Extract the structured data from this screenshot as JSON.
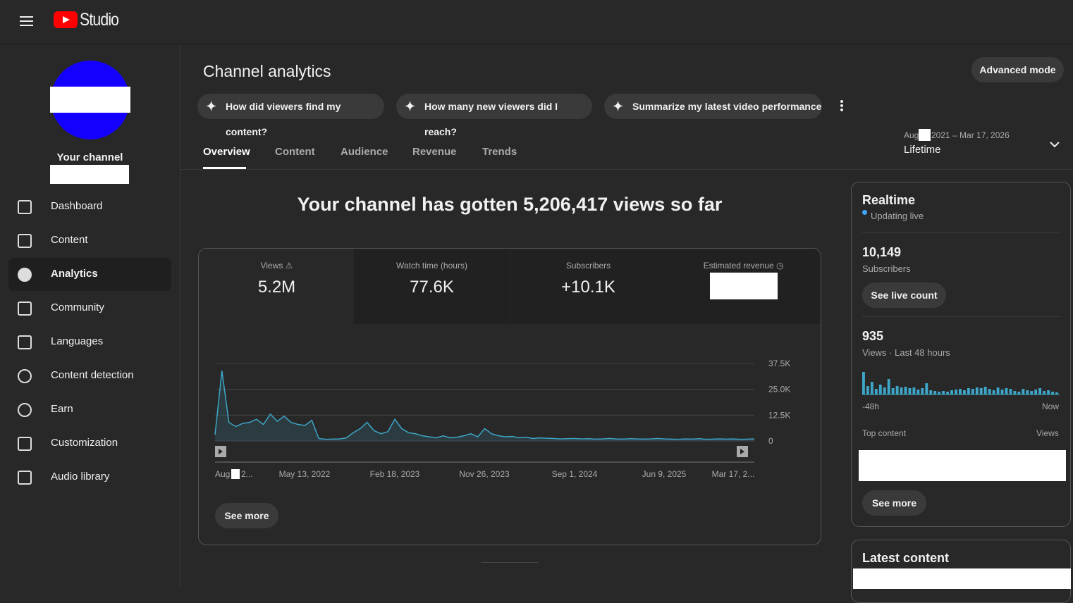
{
  "topbar": {
    "logo_text": "Studio"
  },
  "sidebar": {
    "your_channel": "Your channel",
    "nav": [
      "Dashboard",
      "Content",
      "Analytics",
      "Community",
      "Languages",
      "Content detection",
      "Earn",
      "Customization",
      "Audio library"
    ]
  },
  "header": {
    "title": "Channel analytics",
    "advanced_button": "Advanced mode",
    "chips": [
      "How did viewers find my content?",
      "How many new viewers did I reach?",
      "Summarize my latest video performance"
    ],
    "tabs": [
      "Overview",
      "Content",
      "Audience",
      "Revenue",
      "Trends"
    ],
    "date_range_start": "Aug",
    "date_range_end": "2021 – Mar 17, 2026",
    "period": "Lifetime"
  },
  "overview": {
    "headline": "Your channel has gotten 5,206,417 views so far",
    "metrics": [
      {
        "label": "Views",
        "value": "5.2M"
      },
      {
        "label": "Watch time (hours)",
        "value": "77.6K"
      },
      {
        "label": "Subscribers",
        "value": "+10.1K"
      },
      {
        "label": "Estimated revenue"
      }
    ],
    "see_more": "See more"
  },
  "chart_data": {
    "type": "line",
    "color": "#3ea6c8",
    "ylim": [
      0,
      37500
    ],
    "yticks": [
      {
        "value": 0,
        "label": "0"
      },
      {
        "value": 12500,
        "label": "12.5K"
      },
      {
        "value": 25000,
        "label": "25.0K"
      },
      {
        "value": 37500,
        "label": "37.5K"
      }
    ],
    "x_first_label": [
      "Aug",
      "2..."
    ],
    "x_labels": [
      "May 13, 2022",
      "Feb 18, 2023",
      "Nov 26, 2023",
      "Sep 1, 2024",
      "Jun 9, 2025",
      "Mar 17, 2..."
    ],
    "values": [
      3000,
      34000,
      9000,
      7000,
      8500,
      9000,
      10500,
      8000,
      13000,
      9500,
      12000,
      9000,
      8000,
      7500,
      10000,
      1200,
      800,
      900,
      1000,
      1500,
      4000,
      6000,
      9000,
      5000,
      3500,
      4500,
      10500,
      6000,
      4000,
      3500,
      2500,
      2000,
      1500,
      2500,
      1500,
      1800,
      2500,
      3500,
      2000,
      6000,
      3500,
      2500,
      2000,
      2200,
      1500,
      1800,
      1200,
      1500,
      1300,
      1200,
      1000,
      1100,
      1200,
      1000,
      1100,
      900,
      1000,
      1200,
      1000,
      900,
      1100,
      1000,
      900,
      1000,
      1200,
      1000,
      900,
      800,
      1000,
      900,
      1100,
      800,
      900,
      1000,
      900,
      1000,
      800,
      900,
      1000
    ]
  },
  "realtime": {
    "title": "Realtime",
    "status": "Updating live",
    "subscribers": "10,149",
    "subscribers_label": "Subscribers",
    "live_button": "See live count",
    "views": "935",
    "views_label": "Views · Last 48 hours",
    "bars": [
      32,
      12,
      18,
      8,
      14,
      10,
      22,
      9,
      12,
      10,
      11,
      9,
      10,
      7,
      9,
      16,
      6,
      5,
      4,
      5,
      4,
      6,
      7,
      8,
      6,
      9,
      8,
      10,
      9,
      11,
      8,
      6,
      10,
      7,
      9,
      8,
      5,
      4,
      8,
      6,
      5,
      7,
      9,
      5,
      6,
      4,
      3
    ],
    "start_label": "-48h",
    "end_label": "Now",
    "top_content": "Top content",
    "views_col": "Views",
    "see_more": "See more"
  },
  "latest": {
    "title": "Latest content"
  }
}
